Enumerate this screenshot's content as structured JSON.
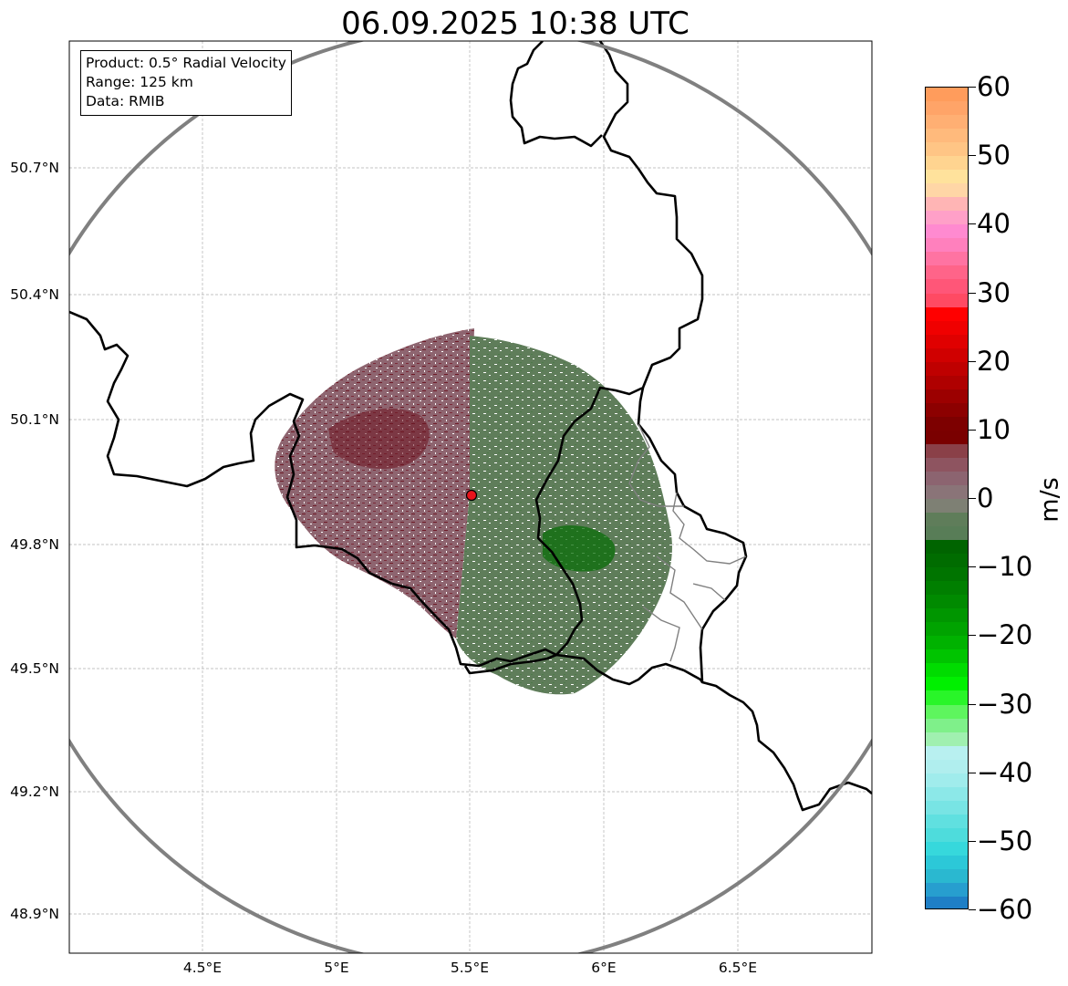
{
  "title": "06.09.2025 10:38 UTC",
  "info": {
    "product": "Product: 0.5° Radial Velocity",
    "range": "Range: 125 km",
    "data": "Data: RMIB"
  },
  "map": {
    "lon_range": [
      4.0,
      7.0
    ],
    "lat_range": [
      48.8,
      50.98
    ],
    "range_ring_km": 125,
    "radar_site": {
      "lon": 5.505,
      "lat": 49.914,
      "color": "#e8141c"
    },
    "latitude_labels": [
      {
        "value": 50.7,
        "label": "50.7°N"
      },
      {
        "value": 50.4,
        "label": "50.4°N"
      },
      {
        "value": 50.1,
        "label": "50.1°N"
      },
      {
        "value": 49.8,
        "label": "49.8°N"
      },
      {
        "value": 49.5,
        "label": "49.5°N"
      },
      {
        "value": 49.2,
        "label": "49.2°N"
      },
      {
        "value": 48.9,
        "label": "48.9°N"
      }
    ],
    "longitude_labels": [
      {
        "value": 4.5,
        "label": "4.5°E"
      },
      {
        "value": 5.0,
        "label": "5°E"
      },
      {
        "value": 5.5,
        "label": "5.5°E"
      },
      {
        "value": 6.0,
        "label": "6°E"
      },
      {
        "value": 6.5,
        "label": "6.5°E"
      }
    ],
    "colors": {
      "ring": "#808080",
      "border": "#000000",
      "inner_border": "#808080",
      "grid": "#b0b0b0",
      "inbound": "#5f7d5a",
      "outbound": "#8e6570"
    }
  },
  "colorbar": {
    "unit": "m/s",
    "min": -60,
    "max": 60,
    "ticks": [
      {
        "value": 60,
        "label": "60"
      },
      {
        "value": 50,
        "label": "50"
      },
      {
        "value": 40,
        "label": "40"
      },
      {
        "value": 30,
        "label": "30"
      },
      {
        "value": 20,
        "label": "20"
      },
      {
        "value": 10,
        "label": "10"
      },
      {
        "value": 0,
        "label": "0"
      },
      {
        "value": -10,
        "label": "−10"
      },
      {
        "value": -20,
        "label": "−20"
      },
      {
        "value": -30,
        "label": "−30"
      },
      {
        "value": -40,
        "label": "−40"
      },
      {
        "value": -50,
        "label": "−50"
      },
      {
        "value": -60,
        "label": "−60"
      }
    ],
    "segments": [
      {
        "from": 58,
        "to": 60,
        "color": "#ff9c5c"
      },
      {
        "from": 56,
        "to": 58,
        "color": "#ffa468"
      },
      {
        "from": 54,
        "to": 56,
        "color": "#ffaf73"
      },
      {
        "from": 52,
        "to": 54,
        "color": "#ffba7c"
      },
      {
        "from": 50,
        "to": 52,
        "color": "#ffc585"
      },
      {
        "from": 48,
        "to": 50,
        "color": "#ffd490"
      },
      {
        "from": 46,
        "to": 48,
        "color": "#ffe29c"
      },
      {
        "from": 44,
        "to": 46,
        "color": "#ffd6a6"
      },
      {
        "from": 42,
        "to": 44,
        "color": "#ffb5b5"
      },
      {
        "from": 40,
        "to": 42,
        "color": "#ffa0c8"
      },
      {
        "from": 38,
        "to": 40,
        "color": "#ff8ad0"
      },
      {
        "from": 36,
        "to": 38,
        "color": "#ff80bd"
      },
      {
        "from": 34,
        "to": 36,
        "color": "#ff73a2"
      },
      {
        "from": 32,
        "to": 34,
        "color": "#ff6489"
      },
      {
        "from": 30,
        "to": 32,
        "color": "#ff5678"
      },
      {
        "from": 28,
        "to": 30,
        "color": "#ff4a63"
      },
      {
        "from": 26,
        "to": 28,
        "color": "#ff0000"
      },
      {
        "from": 24,
        "to": 26,
        "color": "#f00000"
      },
      {
        "from": 22,
        "to": 24,
        "color": "#e00000"
      },
      {
        "from": 20,
        "to": 22,
        "color": "#d00000"
      },
      {
        "from": 18,
        "to": 20,
        "color": "#bf0000"
      },
      {
        "from": 16,
        "to": 18,
        "color": "#af0000"
      },
      {
        "from": 14,
        "to": 16,
        "color": "#9c0000"
      },
      {
        "from": 12,
        "to": 14,
        "color": "#8c0000"
      },
      {
        "from": 10,
        "to": 12,
        "color": "#7d0000"
      },
      {
        "from": 8,
        "to": 10,
        "color": "#7a0000"
      },
      {
        "from": 6,
        "to": 8,
        "color": "#8a4048"
      },
      {
        "from": 4,
        "to": 6,
        "color": "#8e5460"
      },
      {
        "from": 2,
        "to": 4,
        "color": "#8c6470"
      },
      {
        "from": 0,
        "to": 2,
        "color": "#8a7478"
      },
      {
        "from": -2,
        "to": 0,
        "color": "#7e8074"
      },
      {
        "from": -4,
        "to": -2,
        "color": "#5f7d5a"
      },
      {
        "from": -6,
        "to": -4,
        "color": "#587d57"
      },
      {
        "from": -8,
        "to": -6,
        "color": "#006400"
      },
      {
        "from": -10,
        "to": -8,
        "color": "#006c00"
      },
      {
        "from": -12,
        "to": -10,
        "color": "#007400"
      },
      {
        "from": -14,
        "to": -12,
        "color": "#007f00"
      },
      {
        "from": -16,
        "to": -14,
        "color": "#008a00"
      },
      {
        "from": -18,
        "to": -16,
        "color": "#009600"
      },
      {
        "from": -20,
        "to": -18,
        "color": "#00a300"
      },
      {
        "from": -22,
        "to": -20,
        "color": "#00b200"
      },
      {
        "from": -24,
        "to": -22,
        "color": "#00c400"
      },
      {
        "from": -26,
        "to": -24,
        "color": "#00dc00"
      },
      {
        "from": -28,
        "to": -26,
        "color": "#00f000"
      },
      {
        "from": -30,
        "to": -28,
        "color": "#29f529"
      },
      {
        "from": -32,
        "to": -30,
        "color": "#5ef55e"
      },
      {
        "from": -34,
        "to": -32,
        "color": "#7ff08a"
      },
      {
        "from": -36,
        "to": -34,
        "color": "#a0f0b0"
      },
      {
        "from": -38,
        "to": -36,
        "color": "#b8f0f0"
      },
      {
        "from": -40,
        "to": -38,
        "color": "#b0eeee"
      },
      {
        "from": -42,
        "to": -40,
        "color": "#a0ecec"
      },
      {
        "from": -44,
        "to": -42,
        "color": "#8ce8e8"
      },
      {
        "from": -46,
        "to": -44,
        "color": "#78e4e4"
      },
      {
        "from": -48,
        "to": -46,
        "color": "#60e0e0"
      },
      {
        "from": -50,
        "to": -48,
        "color": "#4edcdc"
      },
      {
        "from": -52,
        "to": -50,
        "color": "#36d8dc"
      },
      {
        "from": -54,
        "to": -52,
        "color": "#2cc8d8"
      },
      {
        "from": -56,
        "to": -54,
        "color": "#2ab8d0"
      },
      {
        "from": -58,
        "to": -56,
        "color": "#279ecf"
      },
      {
        "from": -60,
        "to": -58,
        "color": "#1f7fc6"
      }
    ]
  }
}
